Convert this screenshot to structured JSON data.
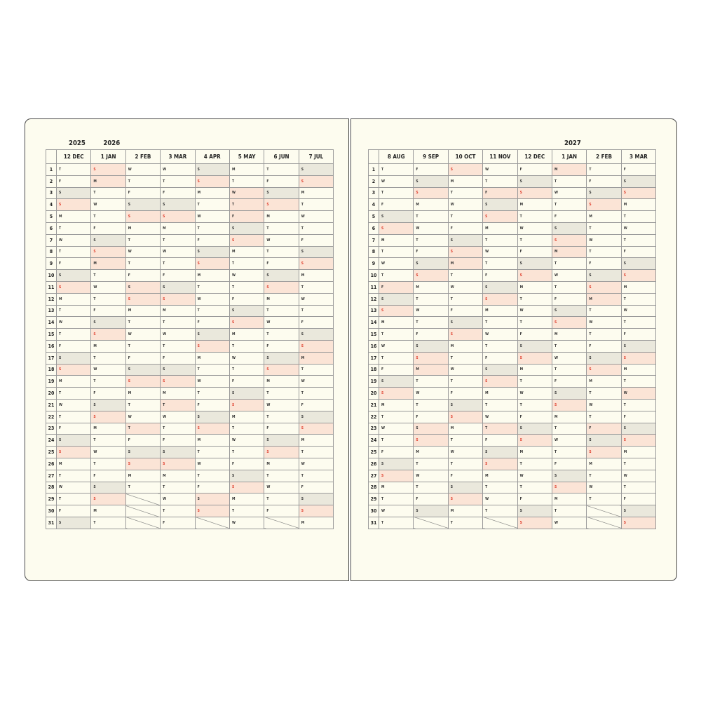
{
  "colors": {
    "saturday_shade": "#eae8dc",
    "holiday_shade": "#fbe4d6",
    "sunday_text": "#e0402f",
    "border": "#9a9a9a",
    "paper": "#fdfcef"
  },
  "left_page": {
    "years": [
      {
        "label": "2025",
        "over_month": 0
      },
      {
        "label": "2026",
        "over_month": 1
      }
    ],
    "months": [
      {
        "label": "12 DEC",
        "days": "TFSSMTWTFSSMTWTFSSMTWTFSSMTWTFS",
        "holidays": []
      },
      {
        "label": "1 JAN",
        "days": "SMTWTFSSMTWTFSSMTWTFSSMTWTFSSMT",
        "holidays": [
          2,
          9
        ]
      },
      {
        "label": "2 FEB",
        "days": "WTFSSMTWTFSSMTWTFSSMTWTFSSMT",
        "holidays": [
          11,
          23
        ]
      },
      {
        "label": "3 MAR",
        "days": "WTFSSMTWTFSSMTWTFSSMTWTFSSMTWTF",
        "holidays": [
          21
        ]
      },
      {
        "label": "4 APR",
        "days": "SSMTWTFSSMTWTFSSMTWTFSSMTWTFSS",
        "holidays": [
          29
        ]
      },
      {
        "label": "5 MAY",
        "days": "MTWTFSSMTWTFSSMTWTFSSMTWTFSSMTW",
        "holidays": [
          3,
          4,
          5
        ]
      },
      {
        "label": "6 JUN",
        "days": "TFSSMTWTFSSMTWTFSSMTWTFSSMTWTF",
        "holidays": []
      },
      {
        "label": "7 JUL",
        "days": "SSMTWTFSSMTWTFSSMTWTFSSMTWTFSSM",
        "holidays": [
          17
        ]
      }
    ]
  },
  "right_page": {
    "years": [
      {
        "label": "2027",
        "over_month": 5
      }
    ],
    "months": [
      {
        "label": "8 AUG",
        "days": "TWTFSSMTWTFSSMTWTFSSMTWTFSSMTWT",
        "holidays": [
          11
        ]
      },
      {
        "label": "9 SEP",
        "days": "FSSMTWTFSSMTWTFSSMTWTFSSMTWTFS",
        "holidays": [
          18,
          23
        ]
      },
      {
        "label": "10 OCT",
        "days": "SMTWTFSSMTWTFSSMTWTFSSMTWTFSSMT",
        "holidays": [
          9
        ]
      },
      {
        "label": "11 NOV",
        "days": "WTFSSMTWTFSSMTWTFSSMTWTFSSMTWT",
        "holidays": [
          3,
          23
        ]
      },
      {
        "label": "12 DEC",
        "days": "FSSMTWTFSSMTWTFSSMTWTFSSMTWTFSS",
        "holidays": []
      },
      {
        "label": "1 JAN",
        "days": "MTWTFSSMTWTFSSMTWTFSSMTWTFSSMTW",
        "holidays": [
          1,
          8
        ]
      },
      {
        "label": "2 FEB",
        "days": "TFSSMTWTFSSMTWTFSSMTWTFSSMTWT",
        "holidays": [
          12,
          23
        ]
      },
      {
        "label": "3 MAR",
        "days": "FSSMTWTFSSMTWTFSSMTWTFSSMTWTFSS",
        "holidays": [
          20
        ]
      }
    ]
  },
  "day_numbers": [
    "1",
    "2",
    "3",
    "4",
    "5",
    "6",
    "7",
    "8",
    "9",
    "10",
    "11",
    "12",
    "13",
    "14",
    "15",
    "16",
    "17",
    "18",
    "19",
    "20",
    "21",
    "22",
    "23",
    "24",
    "25",
    "26",
    "27",
    "28",
    "29",
    "30",
    "31"
  ]
}
